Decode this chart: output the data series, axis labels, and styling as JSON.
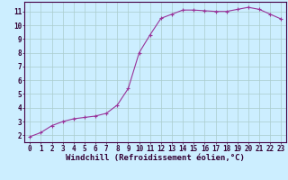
{
  "x": [
    0,
    1,
    2,
    3,
    4,
    5,
    6,
    7,
    8,
    9,
    10,
    11,
    12,
    13,
    14,
    15,
    16,
    17,
    18,
    19,
    20,
    21,
    22,
    23
  ],
  "y": [
    1.9,
    2.2,
    2.7,
    3.0,
    3.2,
    3.3,
    3.4,
    3.6,
    4.2,
    5.4,
    8.0,
    9.3,
    10.5,
    10.8,
    11.1,
    11.1,
    11.05,
    11.0,
    11.0,
    11.15,
    11.3,
    11.15,
    10.8,
    10.45
  ],
  "line_color": "#993399",
  "marker_color": "#993399",
  "bg_color": "#cceeff",
  "grid_color": "#aacccc",
  "axis_color": "#330033",
  "xlabel": "Windchill (Refroidissement éolien,°C)",
  "xlim": [
    -0.5,
    23.5
  ],
  "ylim": [
    1.5,
    11.7
  ],
  "xticks": [
    0,
    1,
    2,
    3,
    4,
    5,
    6,
    7,
    8,
    9,
    10,
    11,
    12,
    13,
    14,
    15,
    16,
    17,
    18,
    19,
    20,
    21,
    22,
    23
  ],
  "yticks": [
    2,
    3,
    4,
    5,
    6,
    7,
    8,
    9,
    10,
    11
  ],
  "tick_fontsize": 5.5,
  "xlabel_fontsize": 6.5
}
